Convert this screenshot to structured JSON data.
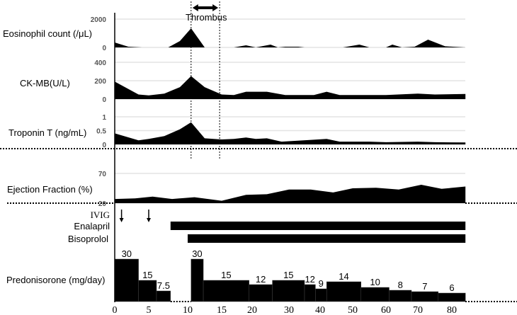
{
  "chart_data": {
    "type": "area",
    "title": "",
    "xlabel": "",
    "x_ticks": [
      0,
      5,
      10,
      15,
      20,
      30,
      40,
      50,
      60,
      70,
      80
    ],
    "annotation": {
      "label": "Thrombus",
      "x_range": [
        10.5,
        14.7
      ]
    },
    "panels": [
      {
        "id": "eos",
        "label": "Eosinophil count (/μL)",
        "ylim": [
          0,
          2000
        ],
        "ticks": [
          0,
          2000
        ],
        "points": [
          [
            0,
            350
          ],
          [
            2,
            50
          ],
          [
            4,
            0
          ],
          [
            7.5,
            0
          ],
          [
            9,
            450
          ],
          [
            10.5,
            1350
          ],
          [
            12.5,
            0
          ],
          [
            17,
            0
          ],
          [
            19,
            150
          ],
          [
            21,
            0
          ],
          [
            25,
            200
          ],
          [
            27,
            0
          ],
          [
            29,
            50
          ],
          [
            33,
            50
          ],
          [
            35,
            0
          ],
          [
            47,
            0
          ],
          [
            52,
            200
          ],
          [
            55,
            0
          ],
          [
            60,
            0
          ],
          [
            62,
            200
          ],
          [
            65,
            0
          ],
          [
            69,
            50
          ],
          [
            73,
            550
          ],
          [
            78,
            80
          ],
          [
            84,
            0
          ]
        ]
      },
      {
        "id": "ck",
        "label": "CK-MB(U/L)",
        "ylim": [
          0,
          400
        ],
        "ticks": [
          0,
          200,
          400
        ],
        "points": [
          [
            0,
            190
          ],
          [
            3.5,
            50
          ],
          [
            5,
            40
          ],
          [
            7,
            60
          ],
          [
            9,
            130
          ],
          [
            10.5,
            250
          ],
          [
            12.5,
            130
          ],
          [
            15,
            50
          ],
          [
            17,
            45
          ],
          [
            19,
            80
          ],
          [
            24,
            80
          ],
          [
            29,
            45
          ],
          [
            38,
            45
          ],
          [
            42,
            80
          ],
          [
            46,
            45
          ],
          [
            60,
            45
          ],
          [
            70,
            60
          ],
          [
            75,
            50
          ],
          [
            84,
            55
          ]
        ]
      },
      {
        "id": "trop",
        "label": "Troponin T (ng/mL)",
        "ylim": [
          0,
          1
        ],
        "ticks": [
          0,
          0.5,
          1
        ],
        "points": [
          [
            0,
            0.4
          ],
          [
            3.5,
            0.15
          ],
          [
            5,
            0.2
          ],
          [
            7,
            0.3
          ],
          [
            9,
            0.55
          ],
          [
            10.5,
            0.8
          ],
          [
            12.5,
            0.22
          ],
          [
            15,
            0.18
          ],
          [
            17,
            0.2
          ],
          [
            19,
            0.25
          ],
          [
            21,
            0.2
          ],
          [
            24,
            0.22
          ],
          [
            28,
            0.1
          ],
          [
            38,
            0.17
          ],
          [
            42,
            0.2
          ],
          [
            46,
            0.1
          ],
          [
            55,
            0.1
          ],
          [
            60,
            0.08
          ],
          [
            70,
            0.1
          ],
          [
            75,
            0.08
          ],
          [
            84,
            0.07
          ]
        ]
      },
      {
        "id": "ef",
        "label": "Ejection Fraction (%)",
        "ylim": [
          20,
          70
        ],
        "ticks": [
          20,
          70
        ],
        "points": [
          [
            0,
            27
          ],
          [
            3,
            28
          ],
          [
            5.5,
            31
          ],
          [
            8,
            27
          ],
          [
            11,
            30
          ],
          [
            15,
            24
          ],
          [
            19,
            34
          ],
          [
            24,
            35
          ],
          [
            30,
            43
          ],
          [
            37,
            43
          ],
          [
            44,
            38
          ],
          [
            50,
            45
          ],
          [
            57,
            46
          ],
          [
            64,
            43
          ],
          [
            71,
            51
          ],
          [
            77,
            44
          ],
          [
            84,
            48
          ]
        ]
      }
    ],
    "treatments": {
      "ivig": {
        "label": "IVIG",
        "doses_day": [
          1,
          5
        ]
      },
      "bars": [
        {
          "label": "Enalapril",
          "start": 7.8,
          "end": 84
        },
        {
          "label": "Bisoprolol",
          "start": 10,
          "end": 84
        }
      ],
      "prednisolone": {
        "label": "Predonisorone (mg/day)",
        "steps": [
          {
            "start": 0,
            "end": 3.5,
            "dose": 30,
            "text": "30"
          },
          {
            "start": 3.5,
            "end": 6,
            "dose": 15,
            "text": "15"
          },
          {
            "start": 6,
            "end": 7.8,
            "dose": 7.5,
            "text": "7.5"
          },
          {
            "start": 10.5,
            "end": 12.3,
            "dose": 30,
            "text": "30"
          },
          {
            "start": 12.3,
            "end": 19.5,
            "dose": 15,
            "text": "15"
          },
          {
            "start": 19.5,
            "end": 25.5,
            "dose": 12,
            "text": "12"
          },
          {
            "start": 25.5,
            "end": 35,
            "dose": 15,
            "text": "15"
          },
          {
            "start": 35,
            "end": 38.5,
            "dose": 12,
            "text": "12"
          },
          {
            "start": 38.5,
            "end": 42,
            "dose": 9,
            "text": "9"
          },
          {
            "start": 42,
            "end": 52.5,
            "dose": 14,
            "text": "14"
          },
          {
            "start": 52.5,
            "end": 61,
            "dose": 10,
            "text": "10"
          },
          {
            "start": 61,
            "end": 68,
            "dose": 8,
            "text": "8"
          },
          {
            "start": 68,
            "end": 76,
            "dose": 7,
            "text": "7"
          },
          {
            "start": 76,
            "end": 84,
            "dose": 6,
            "text": "6"
          }
        ]
      }
    }
  }
}
